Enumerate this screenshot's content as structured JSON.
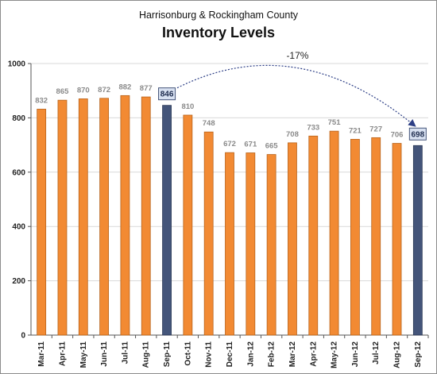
{
  "chart_data": {
    "type": "bar",
    "subtitle": "Harrisonburg & Rockingham County",
    "title": "Inventory Levels",
    "xlabel": "",
    "ylabel": "",
    "categories": [
      "Mar-11",
      "Apr-11",
      "May-11",
      "Jun-11",
      "Jul-11",
      "Aug-11",
      "Sep-11",
      "Oct-11",
      "Nov-11",
      "Dec-11",
      "Jan-12",
      "Feb-12",
      "Mar-12",
      "Apr-12",
      "May-12",
      "Jun-12",
      "Jul-12",
      "Aug-12",
      "Sep-12"
    ],
    "values": [
      832,
      865,
      870,
      872,
      882,
      877,
      846,
      810,
      748,
      672,
      671,
      665,
      708,
      733,
      751,
      721,
      727,
      706,
      698
    ],
    "highlighted": [
      "Sep-11",
      "Sep-12"
    ],
    "ylim": [
      0,
      1000
    ],
    "yticks": [
      0,
      200,
      400,
      600,
      800,
      1000
    ],
    "grid": true,
    "annotation": {
      "text": "-17%",
      "from": "Sep-11",
      "to": "Sep-12"
    },
    "colors": {
      "bar": "#f28a33",
      "highlight": "#44557a",
      "grid": "#d9d9d9",
      "arrow": "#2d3f86"
    }
  }
}
